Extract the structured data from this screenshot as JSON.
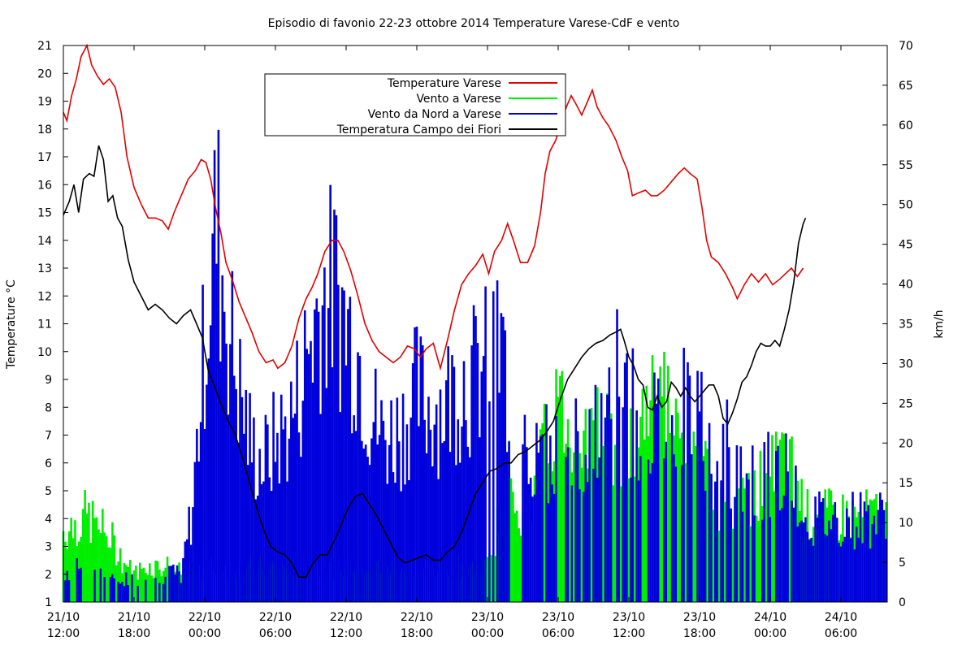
{
  "chart_data": {
    "type": "bar+line",
    "title": "Episodio di favonio 22-23 ottobre 2014 Temperature Varese-CdF e vento",
    "ylabel": "Temperature °C",
    "y2label": "km/h",
    "ylim": [
      1,
      21
    ],
    "y2lim": [
      0,
      70
    ],
    "yticks": [
      "1",
      "2",
      "3",
      "4",
      "5",
      "6",
      "7",
      "8",
      "9",
      "10",
      "11",
      "12",
      "13",
      "14",
      "15",
      "16",
      "17",
      "18",
      "19",
      "20",
      "21"
    ],
    "y2ticks": [
      "0",
      "5",
      "10",
      "15",
      "20",
      "25",
      "30",
      "35",
      "40",
      "45",
      "50",
      "55",
      "60",
      "65",
      "70"
    ],
    "xlim_hours": [
      0,
      45
    ],
    "xticks": [
      {
        "date": "21/10",
        "time": "12:00"
      },
      {
        "date": "21/10",
        "time": "18:00"
      },
      {
        "date": "22/10",
        "time": "00:00"
      },
      {
        "date": "22/10",
        "time": "06:00"
      },
      {
        "date": "22/10",
        "time": "12:00"
      },
      {
        "date": "22/10",
        "time": "18:00"
      },
      {
        "date": "23/10",
        "time": "00:00"
      },
      {
        "date": "23/10",
        "time": "06:00"
      },
      {
        "date": "23/10",
        "time": "12:00"
      },
      {
        "date": "23/10",
        "time": "18:00"
      },
      {
        "date": "24/10",
        "time": "00:00"
      },
      {
        "date": "24/10",
        "time": "06:00"
      }
    ],
    "legend_position": "top-center",
    "series": [
      {
        "name": "Temperature Varese",
        "axis": "left",
        "kind": "line",
        "color": "#e00000",
        "points": [
          [
            0,
            18.6
          ],
          [
            0.3,
            18.3
          ],
          [
            0.7,
            19.2
          ],
          [
            1.1,
            19.8
          ],
          [
            1.5,
            20.6
          ],
          [
            2.0,
            21.0
          ],
          [
            2.4,
            20.3
          ],
          [
            2.9,
            19.9
          ],
          [
            3.4,
            19.6
          ],
          [
            3.9,
            19.8
          ],
          [
            4.4,
            19.5
          ],
          [
            4.9,
            18.6
          ],
          [
            5.4,
            17.0
          ],
          [
            6.0,
            15.9
          ],
          [
            6.6,
            15.3
          ],
          [
            7.2,
            14.8
          ],
          [
            7.8,
            14.8
          ],
          [
            8.4,
            14.7
          ],
          [
            8.9,
            14.4
          ],
          [
            9.4,
            15.0
          ],
          [
            10.0,
            15.6
          ],
          [
            10.6,
            16.2
          ],
          [
            11.2,
            16.5
          ],
          [
            11.7,
            16.9
          ],
          [
            12.1,
            16.8
          ],
          [
            12.5,
            16.2
          ],
          [
            12.9,
            15.2
          ],
          [
            13.4,
            14.2
          ],
          [
            13.8,
            13.2
          ],
          [
            14.4,
            12.5
          ],
          [
            14.9,
            11.8
          ],
          [
            15.4,
            11.3
          ],
          [
            16.0,
            10.7
          ],
          [
            16.6,
            10.0
          ],
          [
            17.2,
            9.6
          ],
          [
            17.8,
            9.7
          ],
          [
            18.2,
            9.4
          ],
          [
            18.8,
            9.6
          ],
          [
            19.4,
            10.2
          ],
          [
            20.0,
            11.2
          ],
          [
            20.6,
            11.9
          ],
          [
            21.1,
            12.3
          ],
          [
            21.6,
            12.8
          ],
          [
            22.2,
            13.6
          ],
          [
            22.8,
            14.0
          ],
          [
            23.3,
            14.0
          ],
          [
            23.8,
            13.6
          ],
          [
            24.4,
            12.9
          ],
          [
            25.0,
            12.0
          ],
          [
            25.6,
            11.0
          ],
          [
            26.2,
            10.4
          ],
          [
            26.8,
            10.0
          ],
          [
            27.4,
            9.8
          ],
          [
            28.0,
            9.6
          ],
          [
            28.6,
            9.8
          ],
          [
            29.2,
            10.2
          ],
          [
            29.8,
            10.1
          ],
          [
            30.3,
            9.8
          ],
          [
            30.8,
            10.1
          ],
          [
            31.4,
            10.3
          ],
          [
            32.0,
            9.4
          ],
          [
            32.6,
            10.4
          ],
          [
            33.2,
            11.5
          ],
          [
            33.8,
            12.4
          ],
          [
            34.4,
            12.8
          ],
          [
            35.0,
            13.1
          ],
          [
            35.6,
            13.5
          ],
          [
            36.1,
            12.8
          ],
          [
            36.6,
            13.6
          ],
          [
            37.2,
            14.0
          ],
          [
            37.7,
            14.6
          ],
          [
            38.2,
            14.0
          ],
          [
            38.8,
            13.2
          ],
          [
            39.4,
            13.2
          ],
          [
            40.0,
            13.8
          ],
          [
            40.5,
            15.0
          ],
          [
            40.9,
            16.4
          ],
          [
            41.3,
            17.2
          ],
          [
            41.8,
            17.6
          ],
          [
            42.2,
            18.2
          ],
          [
            42.7,
            18.8
          ],
          [
            43.1,
            19.2
          ],
          [
            43.5,
            18.9
          ],
          [
            44.0,
            18.5
          ],
          [
            44.5,
            19.0
          ],
          [
            44.9,
            19.4
          ],
          [
            45.3,
            18.8
          ],
          [
            45.8,
            18.4
          ],
          [
            46.3,
            18.1
          ],
          [
            46.9,
            17.6
          ],
          [
            47.4,
            17.0
          ],
          [
            47.9,
            16.5
          ],
          [
            48.3,
            15.6
          ],
          [
            48.8,
            15.7
          ],
          [
            49.4,
            15.8
          ],
          [
            49.9,
            15.6
          ],
          [
            50.4,
            15.6
          ],
          [
            51.0,
            15.8
          ],
          [
            51.6,
            16.1
          ],
          [
            52.2,
            16.4
          ],
          [
            52.7,
            16.6
          ],
          [
            53.2,
            16.4
          ],
          [
            53.8,
            16.2
          ],
          [
            54.2,
            15.2
          ],
          [
            54.6,
            14.0
          ],
          [
            55.0,
            13.4
          ],
          [
            55.6,
            13.2
          ],
          [
            56.2,
            12.8
          ],
          [
            56.8,
            12.3
          ],
          [
            57.2,
            11.9
          ],
          [
            57.8,
            12.4
          ],
          [
            58.4,
            12.8
          ],
          [
            59.0,
            12.5
          ],
          [
            59.6,
            12.8
          ],
          [
            60.2,
            12.4
          ],
          [
            60.8,
            12.6
          ],
          [
            61.3,
            12.8
          ],
          [
            61.8,
            13.0
          ],
          [
            62.3,
            12.7
          ],
          [
            62.8,
            13.0
          ]
        ]
      },
      {
        "name": "Vento a Varese",
        "axis": "right",
        "kind": "bar",
        "color": "#00ee00"
      },
      {
        "name": "Vento da Nord a Varese",
        "axis": "right",
        "kind": "bar",
        "color": "#0000dd"
      },
      {
        "name": "Temperatura Campo dei Fiori",
        "axis": "left",
        "kind": "line",
        "color": "#000000",
        "points": [
          [
            0,
            14.9
          ],
          [
            0.5,
            15.4
          ],
          [
            0.9,
            16.0
          ],
          [
            1.3,
            15.0
          ],
          [
            1.7,
            16.2
          ],
          [
            2.2,
            16.4
          ],
          [
            2.6,
            16.3
          ],
          [
            3.0,
            17.4
          ],
          [
            3.4,
            16.9
          ],
          [
            3.8,
            15.4
          ],
          [
            4.2,
            15.6
          ],
          [
            4.6,
            14.8
          ],
          [
            5.0,
            14.5
          ],
          [
            5.5,
            13.3
          ],
          [
            6.0,
            12.5
          ],
          [
            6.6,
            12.0
          ],
          [
            7.2,
            11.5
          ],
          [
            7.8,
            11.7
          ],
          [
            8.4,
            11.5
          ],
          [
            9.0,
            11.2
          ],
          [
            9.6,
            11.0
          ],
          [
            10.2,
            11.3
          ],
          [
            10.8,
            11.5
          ],
          [
            11.3,
            11.0
          ],
          [
            11.8,
            10.5
          ],
          [
            12.3,
            9.3
          ],
          [
            12.8,
            8.8
          ],
          [
            13.4,
            8.1
          ],
          [
            14.0,
            7.5
          ],
          [
            14.6,
            7.0
          ],
          [
            15.2,
            6.2
          ],
          [
            15.8,
            5.3
          ],
          [
            16.4,
            4.4
          ],
          [
            17.0,
            3.6
          ],
          [
            17.6,
            3.0
          ],
          [
            18.2,
            2.8
          ],
          [
            18.8,
            2.7
          ],
          [
            19.4,
            2.4
          ],
          [
            20.0,
            1.9
          ],
          [
            20.6,
            1.9
          ],
          [
            21.2,
            2.4
          ],
          [
            21.8,
            2.7
          ],
          [
            22.4,
            2.7
          ],
          [
            23.0,
            3.2
          ],
          [
            23.6,
            3.8
          ],
          [
            24.2,
            4.4
          ],
          [
            24.8,
            4.8
          ],
          [
            25.4,
            4.9
          ],
          [
            26.0,
            4.5
          ],
          [
            26.6,
            4.1
          ],
          [
            27.2,
            3.6
          ],
          [
            27.8,
            3.1
          ],
          [
            28.4,
            2.6
          ],
          [
            29.0,
            2.4
          ],
          [
            29.6,
            2.5
          ],
          [
            30.2,
            2.6
          ],
          [
            30.8,
            2.7
          ],
          [
            31.4,
            2.5
          ],
          [
            32.0,
            2.5
          ],
          [
            32.6,
            2.8
          ],
          [
            33.2,
            3.0
          ],
          [
            33.8,
            3.5
          ],
          [
            34.4,
            4.2
          ],
          [
            35.0,
            4.9
          ],
          [
            35.6,
            5.3
          ],
          [
            36.2,
            5.7
          ],
          [
            36.8,
            5.8
          ],
          [
            37.4,
            6.0
          ],
          [
            38.0,
            6.0
          ],
          [
            38.6,
            6.3
          ],
          [
            39.2,
            6.4
          ],
          [
            39.8,
            6.6
          ],
          [
            40.4,
            6.8
          ],
          [
            41.0,
            7.1
          ],
          [
            41.6,
            7.5
          ],
          [
            42.2,
            8.3
          ],
          [
            42.8,
            9.0
          ],
          [
            43.4,
            9.4
          ],
          [
            44.0,
            9.8
          ],
          [
            44.6,
            10.1
          ],
          [
            45.2,
            10.3
          ],
          [
            45.8,
            10.4
          ],
          [
            46.4,
            10.6
          ],
          [
            46.9,
            10.7
          ],
          [
            47.3,
            10.8
          ],
          [
            47.6,
            10.4
          ],
          [
            48.0,
            9.8
          ],
          [
            48.4,
            9.5
          ],
          [
            48.8,
            9.0
          ],
          [
            49.2,
            8.8
          ],
          [
            49.6,
            8.0
          ],
          [
            50.0,
            7.9
          ],
          [
            50.4,
            8.4
          ],
          [
            50.8,
            8.0
          ],
          [
            51.2,
            8.2
          ],
          [
            51.6,
            8.9
          ],
          [
            52.0,
            8.7
          ],
          [
            52.4,
            8.4
          ],
          [
            52.8,
            8.7
          ],
          [
            53.2,
            8.4
          ],
          [
            53.6,
            8.2
          ],
          [
            54.0,
            8.4
          ],
          [
            54.4,
            8.6
          ],
          [
            54.8,
            8.8
          ],
          [
            55.2,
            8.8
          ],
          [
            55.6,
            8.4
          ],
          [
            56.0,
            7.6
          ],
          [
            56.4,
            7.4
          ],
          [
            56.8,
            7.8
          ],
          [
            57.2,
            8.3
          ],
          [
            57.6,
            8.9
          ],
          [
            58.0,
            9.1
          ],
          [
            58.4,
            9.5
          ],
          [
            58.8,
            10.0
          ],
          [
            59.2,
            10.3
          ],
          [
            59.6,
            10.2
          ],
          [
            60.0,
            10.2
          ],
          [
            60.4,
            10.4
          ],
          [
            60.8,
            10.2
          ],
          [
            61.2,
            10.8
          ],
          [
            61.6,
            11.5
          ],
          [
            62.0,
            12.5
          ],
          [
            62.4,
            13.9
          ],
          [
            62.8,
            14.6
          ],
          [
            63.0,
            14.8
          ]
        ]
      }
    ]
  }
}
